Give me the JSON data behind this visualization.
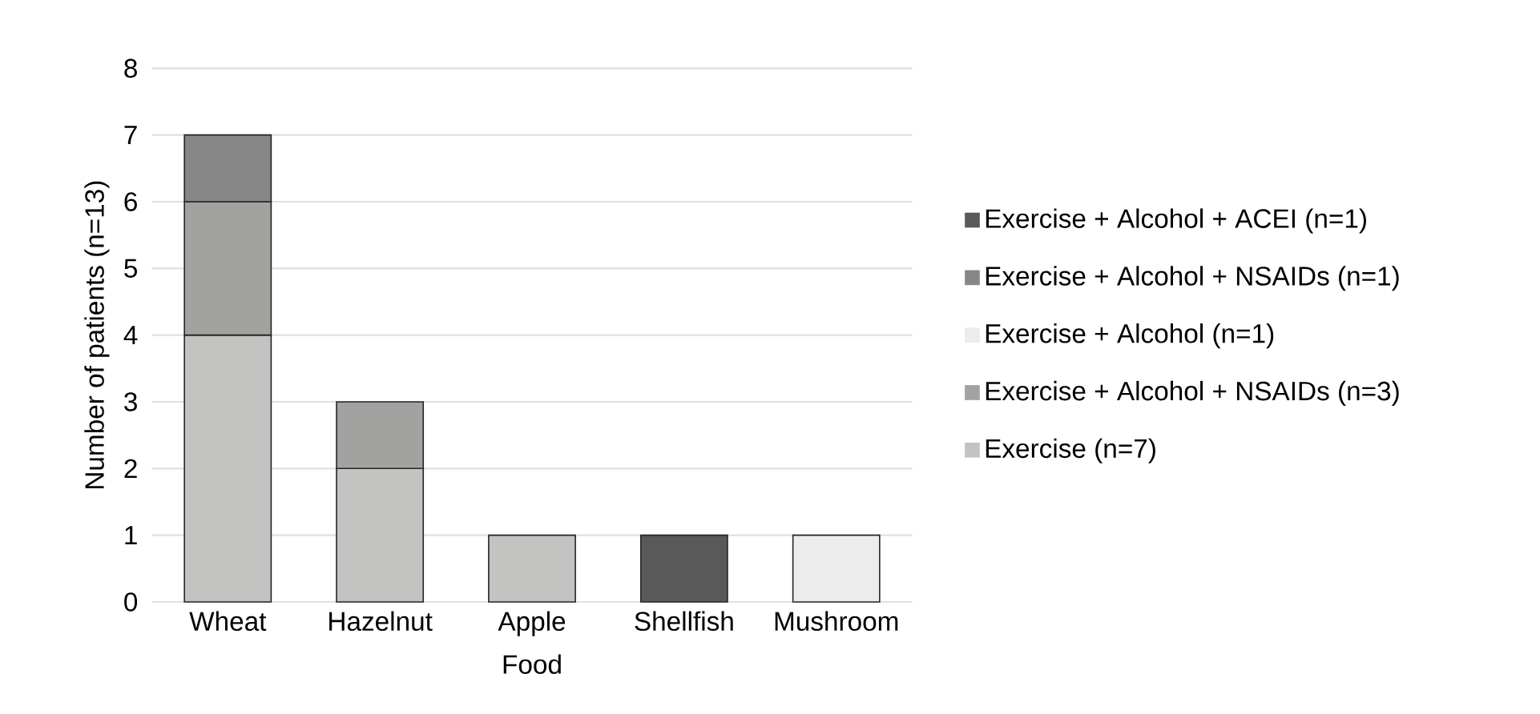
{
  "chart_data": {
    "type": "bar",
    "stacked": true,
    "xlabel": "Food",
    "ylabel": "Number of patients (n=13)",
    "categories": [
      "Wheat",
      "Hazelnut",
      "Apple",
      "Shellfish",
      "Mushroom"
    ],
    "series": [
      {
        "name": "Exercise (n=7)",
        "color": "#c3c3c2",
        "values": [
          4,
          2,
          1,
          null,
          null
        ]
      },
      {
        "name": "Exercise + Alcohol + NSAIDs (n=3)",
        "color": "#a2a2a1",
        "values": [
          2,
          1,
          null,
          null,
          null
        ]
      },
      {
        "name": "Exercise + Alcohol (n=1)",
        "color": "#ececec",
        "values": [
          null,
          null,
          null,
          null,
          1
        ]
      },
      {
        "name": "Exercise + Alcohol + NSAIDs (n=1)",
        "color": "#878787",
        "values": [
          1,
          null,
          null,
          null,
          null
        ]
      },
      {
        "name": "Exercise + Alcohol + ACEI (n=1)",
        "color": "#595959",
        "values": [
          null,
          null,
          null,
          1,
          null
        ]
      }
    ],
    "ylim": [
      0,
      8
    ],
    "yticks": [
      0,
      1,
      2,
      3,
      4,
      5,
      6,
      7,
      8
    ],
    "grid": "y",
    "legend": "right"
  }
}
